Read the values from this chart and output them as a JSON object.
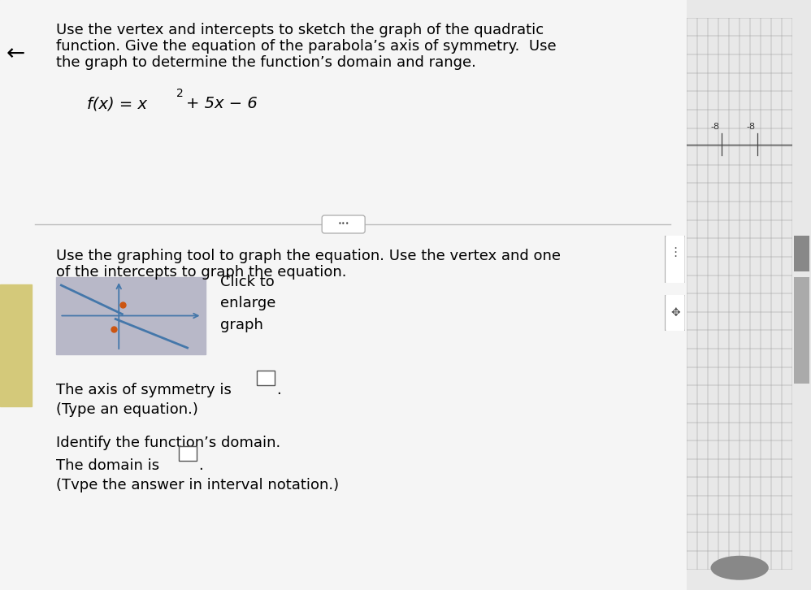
{
  "bg_color": "#e8e8e8",
  "main_bg": "#e8e8e8",
  "white_panel_bg": "#f5f5f5",
  "title_text_line1": "Use the vertex and intercepts to sketch the graph of the quadratic",
  "title_text_line2": "function. Give the equation of the parabola’s axis of symmetry.  Use",
  "title_text_line3": "the graph to determine the function’s domain and range.",
  "instruction_text_line1": "Use the graphing tool to graph the equation. Use the vertex and one",
  "instruction_text_line2": "of the intercepts to graph the equation.",
  "click_text": "Click to\nenlarge\ngraph",
  "axis_sym_label": "The axis of symmetry is",
  "axis_sym_hint": "(Type an equation.)",
  "domain_label": "Identify the function’s domain.",
  "domain_text": "The domain is",
  "domain_hint": "(Tvpe the answer in interval notation.)",
  "arrow_symbol": "←",
  "grid_line_color": "#999999",
  "grid_bg": "#ffffff",
  "separator_color": "#bbbbbb",
  "yellow_bar_color": "#d4c97a",
  "thumbnail_bg": "#b8b8c8",
  "thumbnail_line_color": "#4477aa",
  "thumbnail_dot_color": "#cc5511",
  "scroll_bar_color": "#aaaaaa",
  "scroll_handle_color": "#888888",
  "dots_handle_color": "#666666"
}
